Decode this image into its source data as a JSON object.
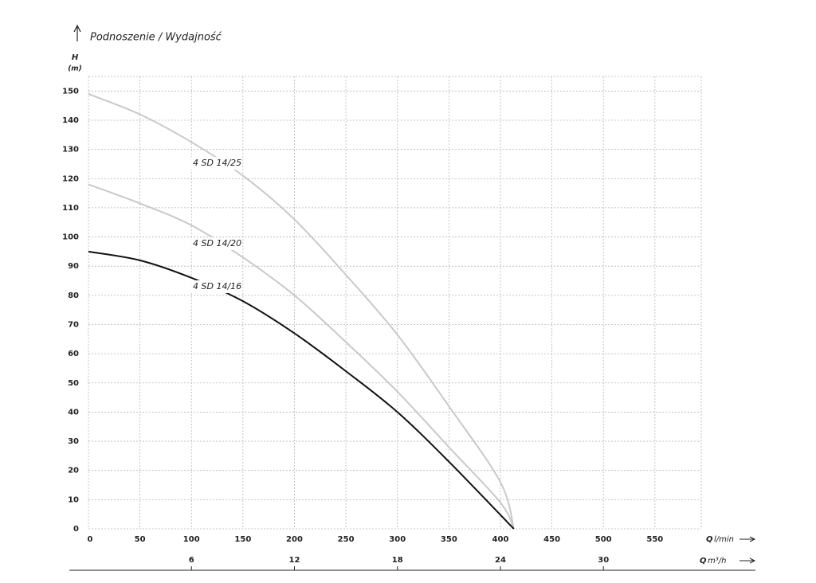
{
  "chart_data": {
    "type": "line",
    "title": "Podnoszenie / Wydajność",
    "y_label": "H",
    "y_unit": "(m)",
    "x_label": {
      "symbol": "Q",
      "unit": "l/min"
    },
    "x2_label": {
      "symbol": "Q",
      "unit": "m³/h"
    },
    "xlim": [
      0,
      595
    ],
    "xticks": [
      0,
      50,
      100,
      150,
      200,
      250,
      300,
      350,
      400,
      450,
      500,
      550
    ],
    "x2lim": [
      0,
      35.7
    ],
    "x2ticks": [
      6,
      12,
      18,
      24,
      30
    ],
    "ylim": [
      0,
      155
    ],
    "yticks": [
      0,
      10,
      20,
      30,
      40,
      50,
      60,
      70,
      80,
      90,
      100,
      110,
      120,
      130,
      140,
      150
    ],
    "grid": true,
    "series": [
      {
        "name": "4 SD 14/25",
        "color": "#c9c9c9",
        "x": [
          0,
          50,
          100,
          150,
          200,
          250,
          300,
          350,
          400,
          413
        ],
        "values": [
          149,
          142,
          132.5,
          121,
          106,
          87,
          66.5,
          42,
          16,
          0
        ]
      },
      {
        "name": "4 SD 14/20",
        "color": "#c9c9c9",
        "x": [
          0,
          50,
          100,
          150,
          200,
          250,
          300,
          350,
          400,
          413
        ],
        "values": [
          118,
          111.5,
          104,
          93,
          80,
          64,
          47,
          28,
          9,
          0
        ]
      },
      {
        "name": "4 SD 14/16",
        "color": "#111111",
        "x": [
          0,
          50,
          100,
          150,
          200,
          250,
          300,
          350,
          413
        ],
        "values": [
          95,
          92,
          86,
          78,
          67,
          54,
          40,
          23,
          0
        ]
      }
    ]
  }
}
